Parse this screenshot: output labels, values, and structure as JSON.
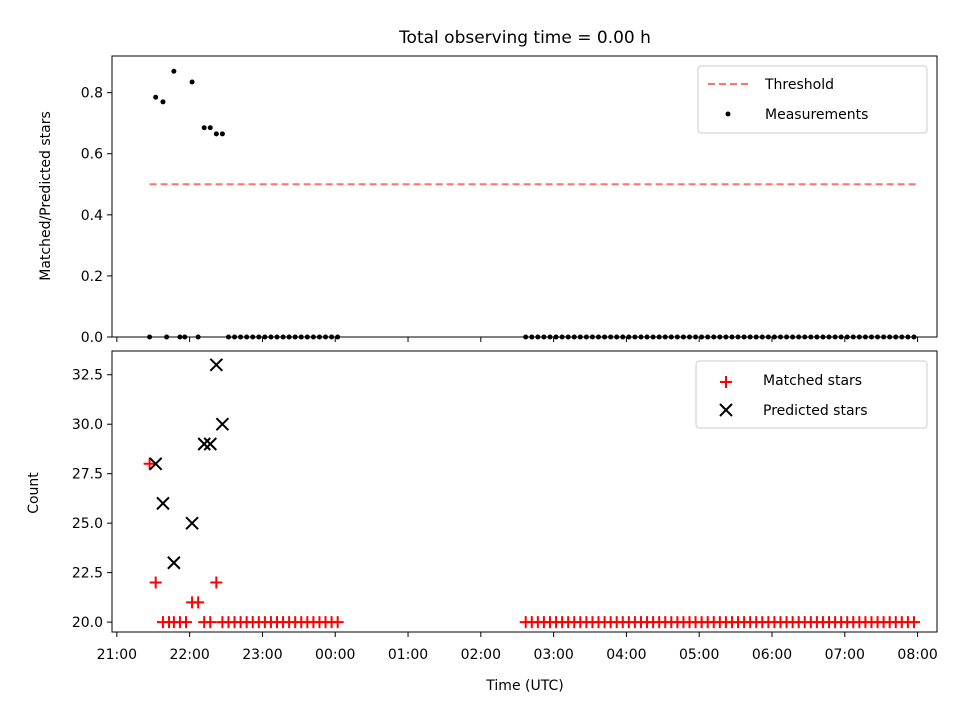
{
  "chart_data": [
    {
      "type": "scatter",
      "title": "Total observing time = 0.00 h",
      "xlabel": "",
      "ylabel": "Matched/Predicted stars",
      "xlim": [
        "20:56",
        "32:16"
      ],
      "ylim": [
        0,
        0.92
      ],
      "yticks": [
        "0.0",
        "0.2",
        "0.4",
        "0.6",
        "0.8"
      ],
      "grid": false,
      "legend_position": "upper right",
      "threshold": {
        "name": "Threshold",
        "value": 0.5,
        "x_start": "21:27",
        "x_end": "31:59",
        "color": "#ff7070",
        "style": "dashed"
      },
      "series": [
        {
          "name": "Measurements",
          "color": "#000000",
          "marker": "dot",
          "points": [
            [
              "21:27",
              0.0
            ],
            [
              "21:32",
              0.785
            ],
            [
              "21:38",
              0.77
            ],
            [
              "21:41",
              0.0
            ],
            [
              "21:47",
              0.87
            ],
            [
              "21:52",
              0.0
            ],
            [
              "21:56",
              0.0
            ],
            [
              "22:02",
              0.835
            ],
            [
              "22:07",
              0.0
            ],
            [
              "22:12",
              0.685
            ],
            [
              "22:17",
              0.685
            ],
            [
              "22:22",
              0.665
            ],
            [
              "22:27",
              0.665
            ]
          ],
          "zero_runs": [
            {
              "start": "22:32",
              "end": "24:05",
              "step_min": 5
            },
            {
              "start": "26:37",
              "end": "31:59",
              "step_min": 5
            }
          ]
        }
      ]
    },
    {
      "type": "scatter",
      "xlabel": "Time (UTC)",
      "ylabel": "Count",
      "xlim": [
        "20:56",
        "32:16"
      ],
      "ylim": [
        19.5,
        33.7
      ],
      "yticks": [
        "20.0",
        "22.5",
        "25.0",
        "27.5",
        "30.0",
        "32.5"
      ],
      "xticks": [
        "21:00",
        "22:00",
        "23:00",
        "00:00",
        "01:00",
        "02:00",
        "03:00",
        "04:00",
        "05:00",
        "06:00",
        "07:00",
        "08:00"
      ],
      "grid": false,
      "legend_position": "upper right",
      "series": [
        {
          "name": "Matched stars",
          "color": "#ff0000",
          "marker": "plus",
          "points": [
            [
              "21:27",
              28
            ],
            [
              "21:32",
              22
            ],
            [
              "21:38",
              20
            ],
            [
              "21:43",
              20
            ],
            [
              "21:47",
              20
            ],
            [
              "21:52",
              20
            ],
            [
              "21:57",
              20
            ],
            [
              "22:02",
              21
            ],
            [
              "22:07",
              21
            ],
            [
              "22:12",
              20
            ],
            [
              "22:17",
              20
            ],
            [
              "22:22",
              22
            ],
            [
              "22:27",
              20
            ]
          ],
          "zero_runs_value": 20,
          "runs": [
            {
              "start": "22:32",
              "end": "24:05",
              "step_min": 5
            },
            {
              "start": "26:37",
              "end": "31:59",
              "step_min": 5
            }
          ]
        },
        {
          "name": "Predicted stars",
          "color": "#000000",
          "marker": "x",
          "points": [
            [
              "21:32",
              28
            ],
            [
              "21:38",
              26
            ],
            [
              "21:47",
              23
            ],
            [
              "22:02",
              25
            ],
            [
              "22:12",
              29
            ],
            [
              "22:17",
              29
            ],
            [
              "22:22",
              33
            ],
            [
              "22:27",
              30
            ]
          ]
        }
      ]
    }
  ]
}
